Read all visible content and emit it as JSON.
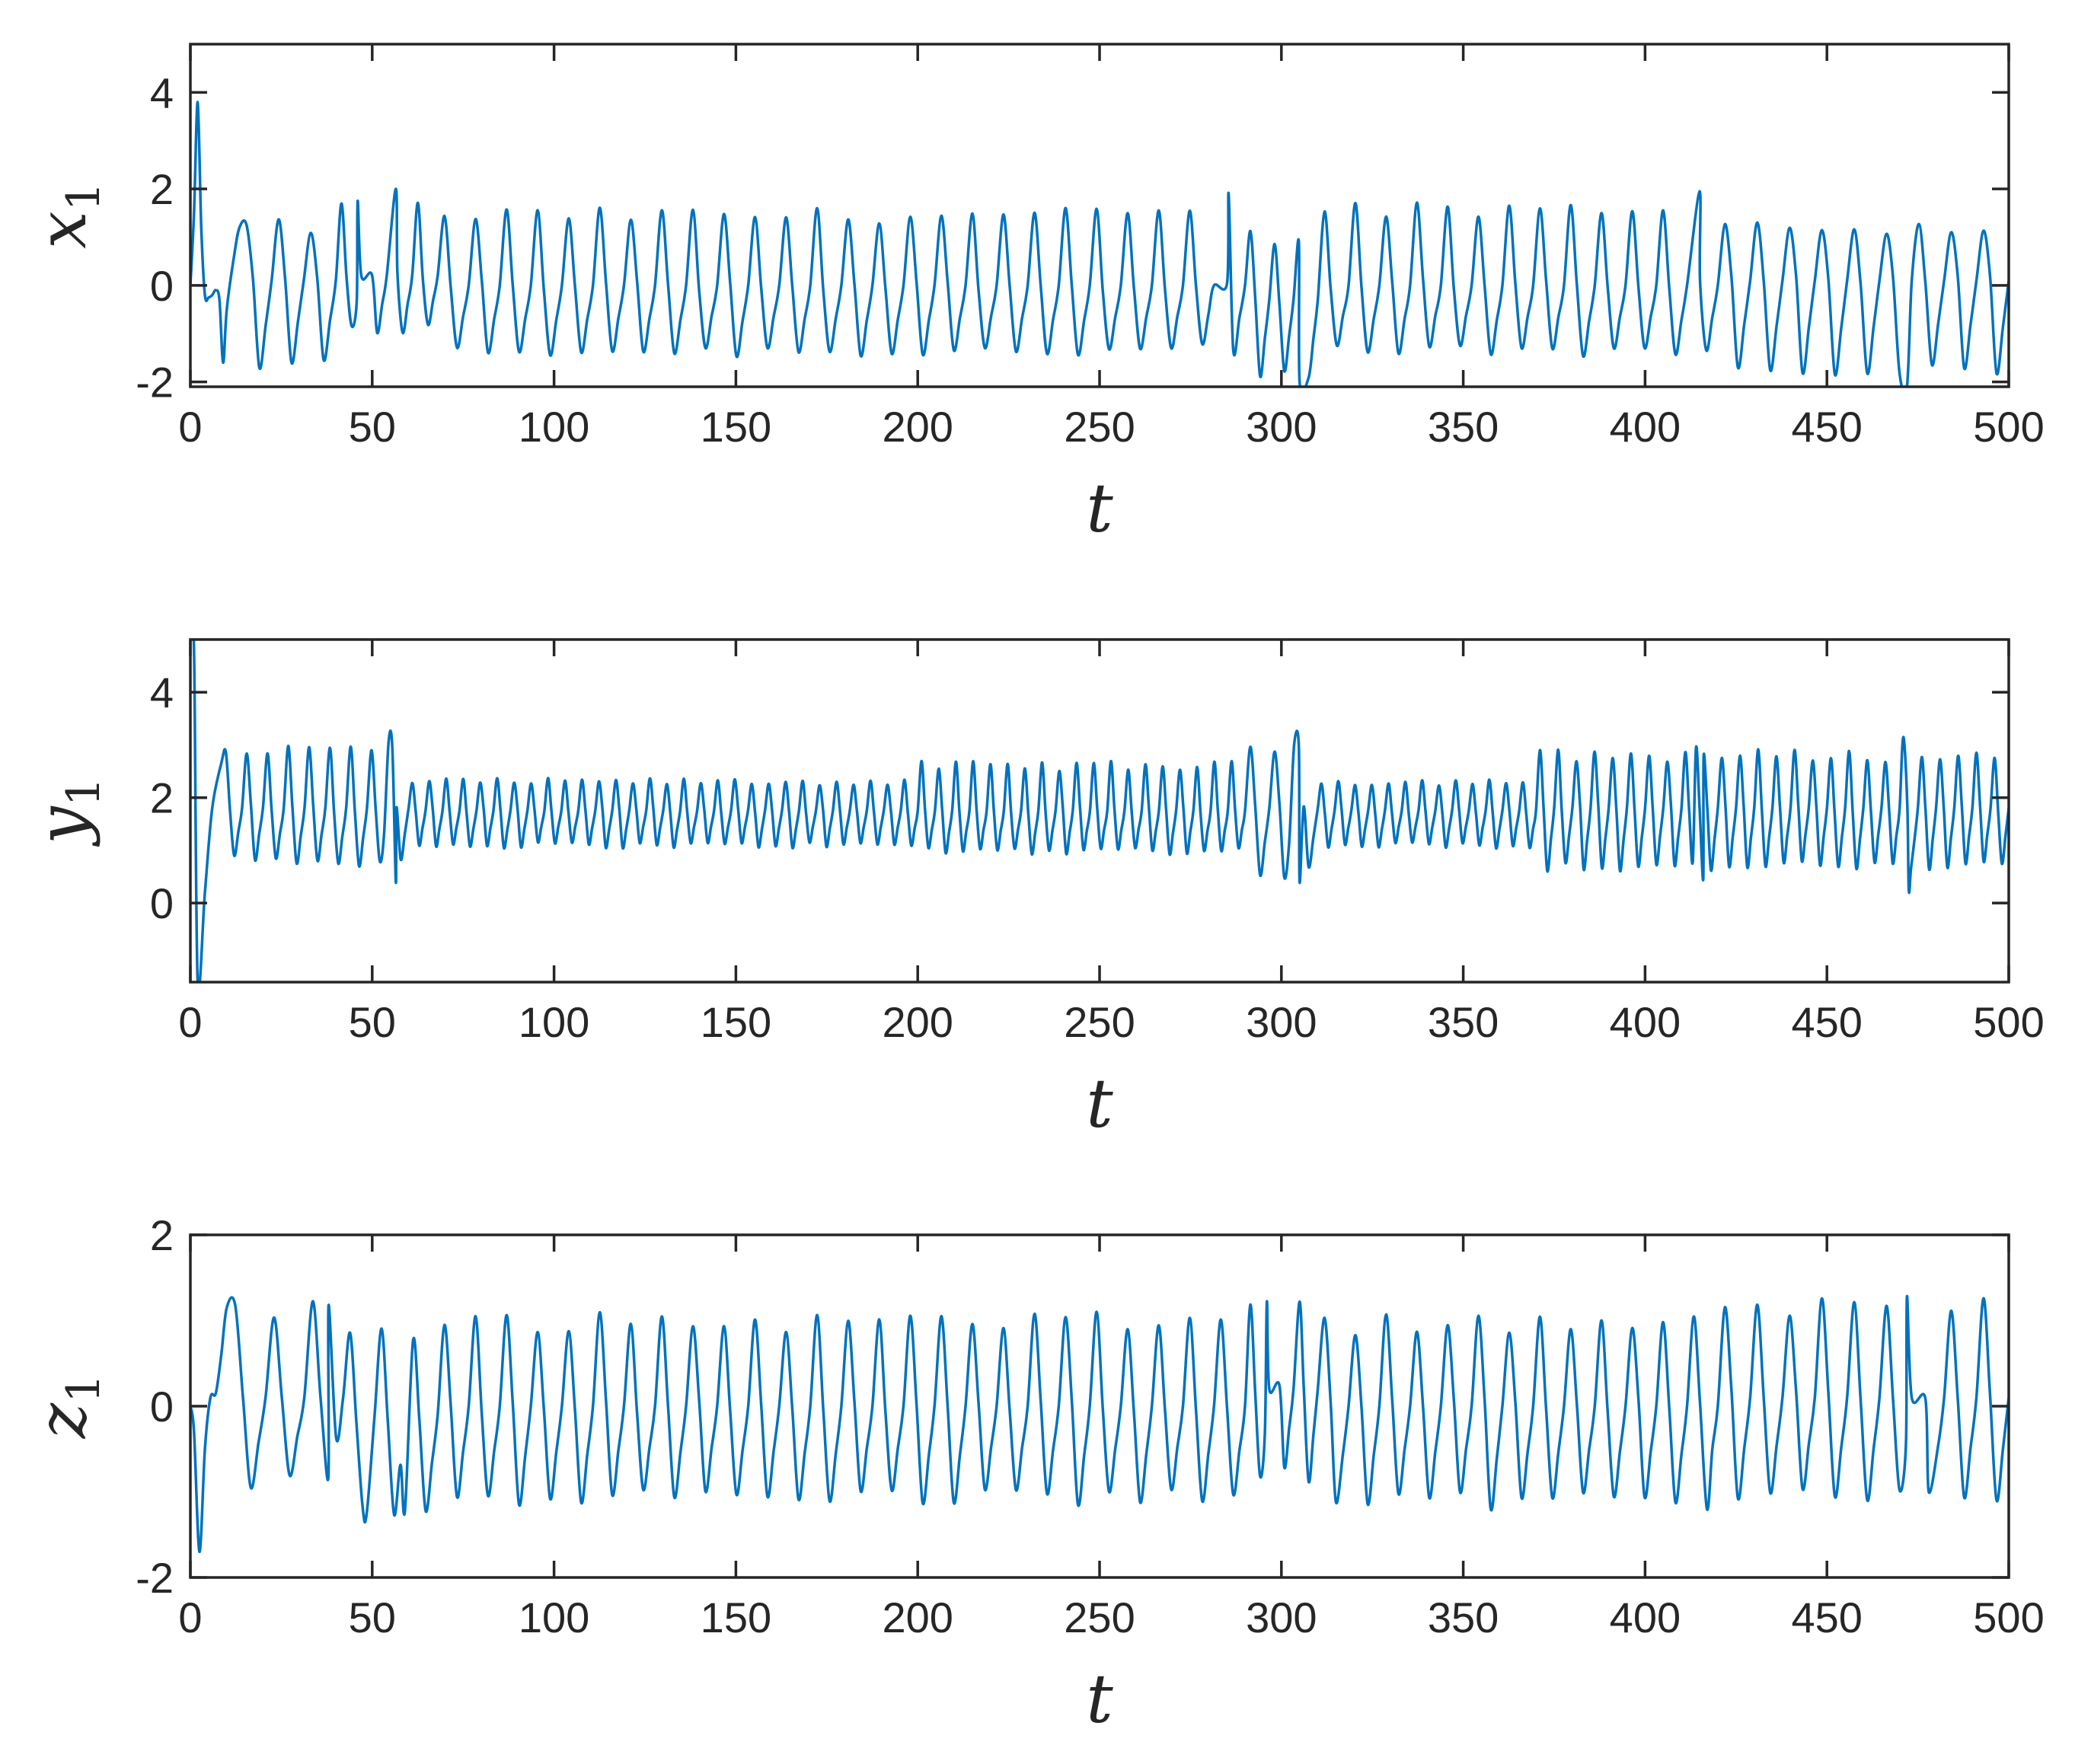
{
  "figure": {
    "line_color": "#0072BD",
    "axis_color": "#262626"
  },
  "chart_data": [
    {
      "type": "line",
      "xlabel": "t",
      "ylabel_var": "x",
      "ylabel_sub": "1",
      "xlim": [
        0,
        500
      ],
      "ylim": [
        -2.1,
        5
      ],
      "xticks": [
        0,
        50,
        100,
        150,
        200,
        250,
        300,
        350,
        400,
        450,
        500
      ],
      "yticks": [
        -2,
        0,
        2,
        4
      ],
      "grid": false,
      "series": [
        {
          "style": "oscillation",
          "transient": [
            [
              0,
              0
            ],
            [
              1,
              1.5
            ],
            [
              2,
              3.8
            ],
            [
              3,
              1.2
            ],
            [
              4,
              -0.2
            ],
            [
              5,
              -0.25
            ],
            [
              6,
              -0.2
            ],
            [
              7,
              -0.1
            ],
            [
              8,
              -0.3
            ],
            [
              9,
              -1.6
            ],
            [
              10,
              -0.5
            ],
            [
              12,
              0.6
            ],
            [
              13.5,
              1.2
            ]
          ],
          "segments": [
            {
              "t0": 13.5,
              "t1": 40,
              "period": 9.2,
              "max": 1.2,
              "min": -1.65,
              "mid": 0.1
            },
            {
              "t0": 40,
              "t1": 68,
              "period": 7.5,
              "max": 1.6,
              "min": -0.9,
              "mid": 0.2
            },
            {
              "t0": 68,
              "t1": 290,
              "period": 8.6,
              "max": 1.45,
              "min": -1.35,
              "mid": 0.0
            },
            {
              "t0": 290,
              "t1": 310,
              "period": 6.5,
              "max": 1.0,
              "min": -1.9,
              "mid": -0.3
            },
            {
              "t0": 310,
              "t1": 420,
              "period": 8.6,
              "max": 1.6,
              "min": -1.35,
              "mid": 0.0
            },
            {
              "t0": 420,
              "t1": 500,
              "period": 9.0,
              "max": 1.2,
              "min": -1.7,
              "mid": 0.1
            }
          ],
          "spikes": [
            [
              56.5,
              2.0
            ],
            [
              46,
              1.75
            ],
            [
              285.5,
              1.9
            ],
            [
              305,
              -2.0
            ],
            [
              415,
              1.95
            ],
            [
              472,
              -2.1
            ]
          ]
        }
      ]
    },
    {
      "type": "line",
      "xlabel": "t",
      "ylabel_var": "y",
      "ylabel_sub": "1",
      "xlim": [
        0,
        500
      ],
      "ylim": [
        -1.5,
        5
      ],
      "xticks": [
        0,
        50,
        100,
        150,
        200,
        250,
        300,
        350,
        400,
        450,
        500
      ],
      "yticks": [
        0,
        2,
        4
      ],
      "grid": false,
      "series": [
        {
          "style": "oscillation",
          "transient": [
            [
              0,
              5
            ],
            [
              1,
              4.8
            ],
            [
              2,
              -1.5
            ],
            [
              4,
              0.2
            ],
            [
              6,
              1.8
            ],
            [
              8.5,
              2.65
            ]
          ],
          "segments": [
            {
              "t0": 8.5,
              "t1": 60,
              "period": 5.5,
              "max": 2.9,
              "min": 0.8,
              "mid": 1.8
            },
            {
              "t0": 60,
              "t1": 200,
              "period": 4.6,
              "max": 2.3,
              "min": 1.1,
              "mid": 1.75
            },
            {
              "t0": 200,
              "t1": 290,
              "period": 4.8,
              "max": 2.6,
              "min": 1.0,
              "mid": 1.75
            },
            {
              "t0": 290,
              "t1": 310,
              "period": 6.0,
              "max": 3.0,
              "min": 0.6,
              "mid": 1.8
            },
            {
              "t0": 310,
              "t1": 370,
              "period": 4.7,
              "max": 2.3,
              "min": 1.1,
              "mid": 1.75
            },
            {
              "t0": 370,
              "t1": 500,
              "period": 5.0,
              "max": 2.8,
              "min": 0.7,
              "mid": 1.8
            }
          ],
          "spikes": [
            [
              56.5,
              0.4
            ],
            [
              54.5,
              3.05
            ],
            [
              305,
              0.4
            ],
            [
              303.5,
              3.0
            ],
            [
              471,
              3.15
            ],
            [
              472.5,
              0.25
            ],
            [
              414,
              2.95
            ],
            [
              416,
              0.45
            ]
          ]
        }
      ]
    },
    {
      "type": "line",
      "xlabel": "t",
      "ylabel_var": "z",
      "ylabel_sub": "1",
      "xlim": [
        0,
        500
      ],
      "ylim": [
        -2,
        2
      ],
      "xticks": [
        0,
        50,
        100,
        150,
        200,
        250,
        300,
        350,
        400,
        450,
        500
      ],
      "yticks": [
        -2,
        0,
        2
      ],
      "grid": false,
      "series": [
        {
          "style": "oscillation",
          "transient": [
            [
              0,
              0
            ],
            [
              1,
              -0.3
            ],
            [
              2.5,
              -1.7
            ],
            [
              4,
              -0.5
            ],
            [
              5.5,
              0.1
            ],
            [
              7,
              0.15
            ],
            [
              8.5,
              0.6
            ],
            [
              10,
              1.15
            ]
          ],
          "segments": [
            {
              "t0": 10,
              "t1": 42,
              "period": 9.3,
              "max": 1.15,
              "min": -0.9,
              "mid": 0.1
            },
            {
              "t0": 42,
              "t1": 68,
              "period": 8.0,
              "max": 0.8,
              "min": -1.2,
              "mid": -0.1
            },
            {
              "t0": 68,
              "t1": 290,
              "period": 8.7,
              "max": 0.98,
              "min": -1.05,
              "mid": 0.0
            },
            {
              "t0": 290,
              "t1": 310,
              "period": 7.5,
              "max": 1.2,
              "min": -0.8,
              "mid": 0.2
            },
            {
              "t0": 310,
              "t1": 420,
              "period": 8.7,
              "max": 0.95,
              "min": -1.1,
              "mid": 0.0
            },
            {
              "t0": 420,
              "t1": 500,
              "period": 9.0,
              "max": 1.15,
              "min": -1.0,
              "mid": 0.1
            }
          ],
          "spikes": [
            [
              38,
              1.18
            ],
            [
              48.5,
              -1.25
            ],
            [
              59,
              -1.22
            ],
            [
              296,
              1.22
            ],
            [
              305,
              1.22
            ],
            [
              315,
              -1.12
            ],
            [
              417,
              -1.2
            ],
            [
              472,
              1.28
            ],
            [
              478,
              -1.0
            ]
          ]
        }
      ]
    }
  ]
}
